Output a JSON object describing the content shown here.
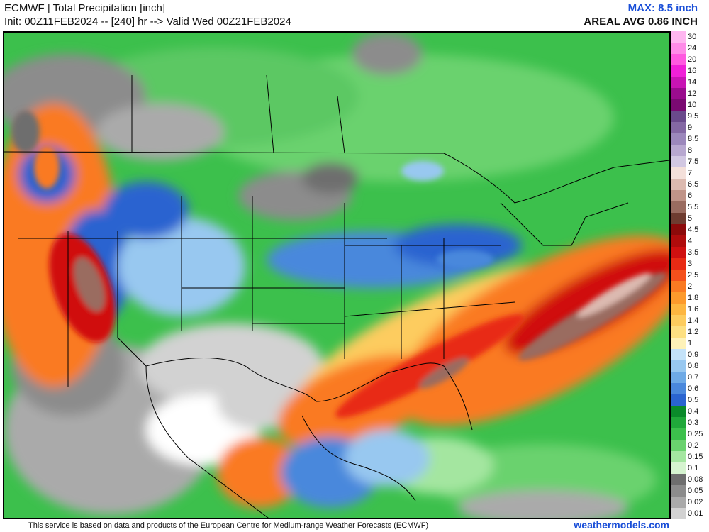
{
  "header": {
    "title": "ECMWF | Total Precipitation [inch]",
    "init": "Init: 00Z11FEB2024 -- [240] hr --> Valid Wed 00Z21FEB2024",
    "max": "MAX: 8.5 inch",
    "areal_avg": "AREAL AVG 0.86 INCH"
  },
  "footer": {
    "credit": "This service is based on data and products of the European Centre for Medium-range Weather Forecasts (ECMWF)",
    "brand": "weathermodels.com"
  },
  "legend": [
    {
      "label": "30",
      "color": "#ffb6f0"
    },
    {
      "label": "24",
      "color": "#ff8ce8"
    },
    {
      "label": "20",
      "color": "#ff5ae0"
    },
    {
      "label": "16",
      "color": "#f020d8"
    },
    {
      "label": "14",
      "color": "#c814b4"
    },
    {
      "label": "12",
      "color": "#9a0c8e"
    },
    {
      "label": "10",
      "color": "#7a0a72"
    },
    {
      "label": "9.5",
      "color": "#6a4a8c"
    },
    {
      "label": "9",
      "color": "#8468a4"
    },
    {
      "label": "8.5",
      "color": "#9c88bc"
    },
    {
      "label": "8",
      "color": "#b8a8d0"
    },
    {
      "label": "7.5",
      "color": "#d2c8e2"
    },
    {
      "label": "7",
      "color": "#f4e0da"
    },
    {
      "label": "6.5",
      "color": "#dcbab0"
    },
    {
      "label": "6",
      "color": "#c09488"
    },
    {
      "label": "5.5",
      "color": "#9a6c60"
    },
    {
      "label": "5",
      "color": "#6e3c30"
    },
    {
      "label": "4.5",
      "color": "#8c0a0a"
    },
    {
      "label": "4",
      "color": "#b00c0c"
    },
    {
      "label": "3.5",
      "color": "#d01010"
    },
    {
      "label": "3",
      "color": "#e82a14"
    },
    {
      "label": "2.5",
      "color": "#f4501c"
    },
    {
      "label": "2",
      "color": "#fa7a22"
    },
    {
      "label": "1.8",
      "color": "#fc9a2c"
    },
    {
      "label": "1.6",
      "color": "#fdb640"
    },
    {
      "label": "1.4",
      "color": "#fdcc5e"
    },
    {
      "label": "1.2",
      "color": "#fde082"
    },
    {
      "label": "1",
      "color": "#fef2b8"
    },
    {
      "label": "0.9",
      "color": "#c4e2f8"
    },
    {
      "label": "0.8",
      "color": "#98c8f0"
    },
    {
      "label": "0.7",
      "color": "#6eaae6"
    },
    {
      "label": "0.6",
      "color": "#4a88dc"
    },
    {
      "label": "0.5",
      "color": "#2a64d0"
    },
    {
      "label": "0.4",
      "color": "#0a8a2a"
    },
    {
      "label": "0.3",
      "color": "#20a83a"
    },
    {
      "label": "0.25",
      "color": "#3cc04c"
    },
    {
      "label": "0.2",
      "color": "#6ad26e"
    },
    {
      "label": "0.15",
      "color": "#a4e6a0"
    },
    {
      "label": "0.1",
      "color": "#d6f4d0"
    },
    {
      "label": "0.08",
      "color": "#6e6e6e"
    },
    {
      "label": "0.05",
      "color": "#8c8c8c"
    },
    {
      "label": "0.02",
      "color": "#aaaaaa"
    },
    {
      "label": "0.01",
      "color": "#d2d2d2"
    }
  ]
}
